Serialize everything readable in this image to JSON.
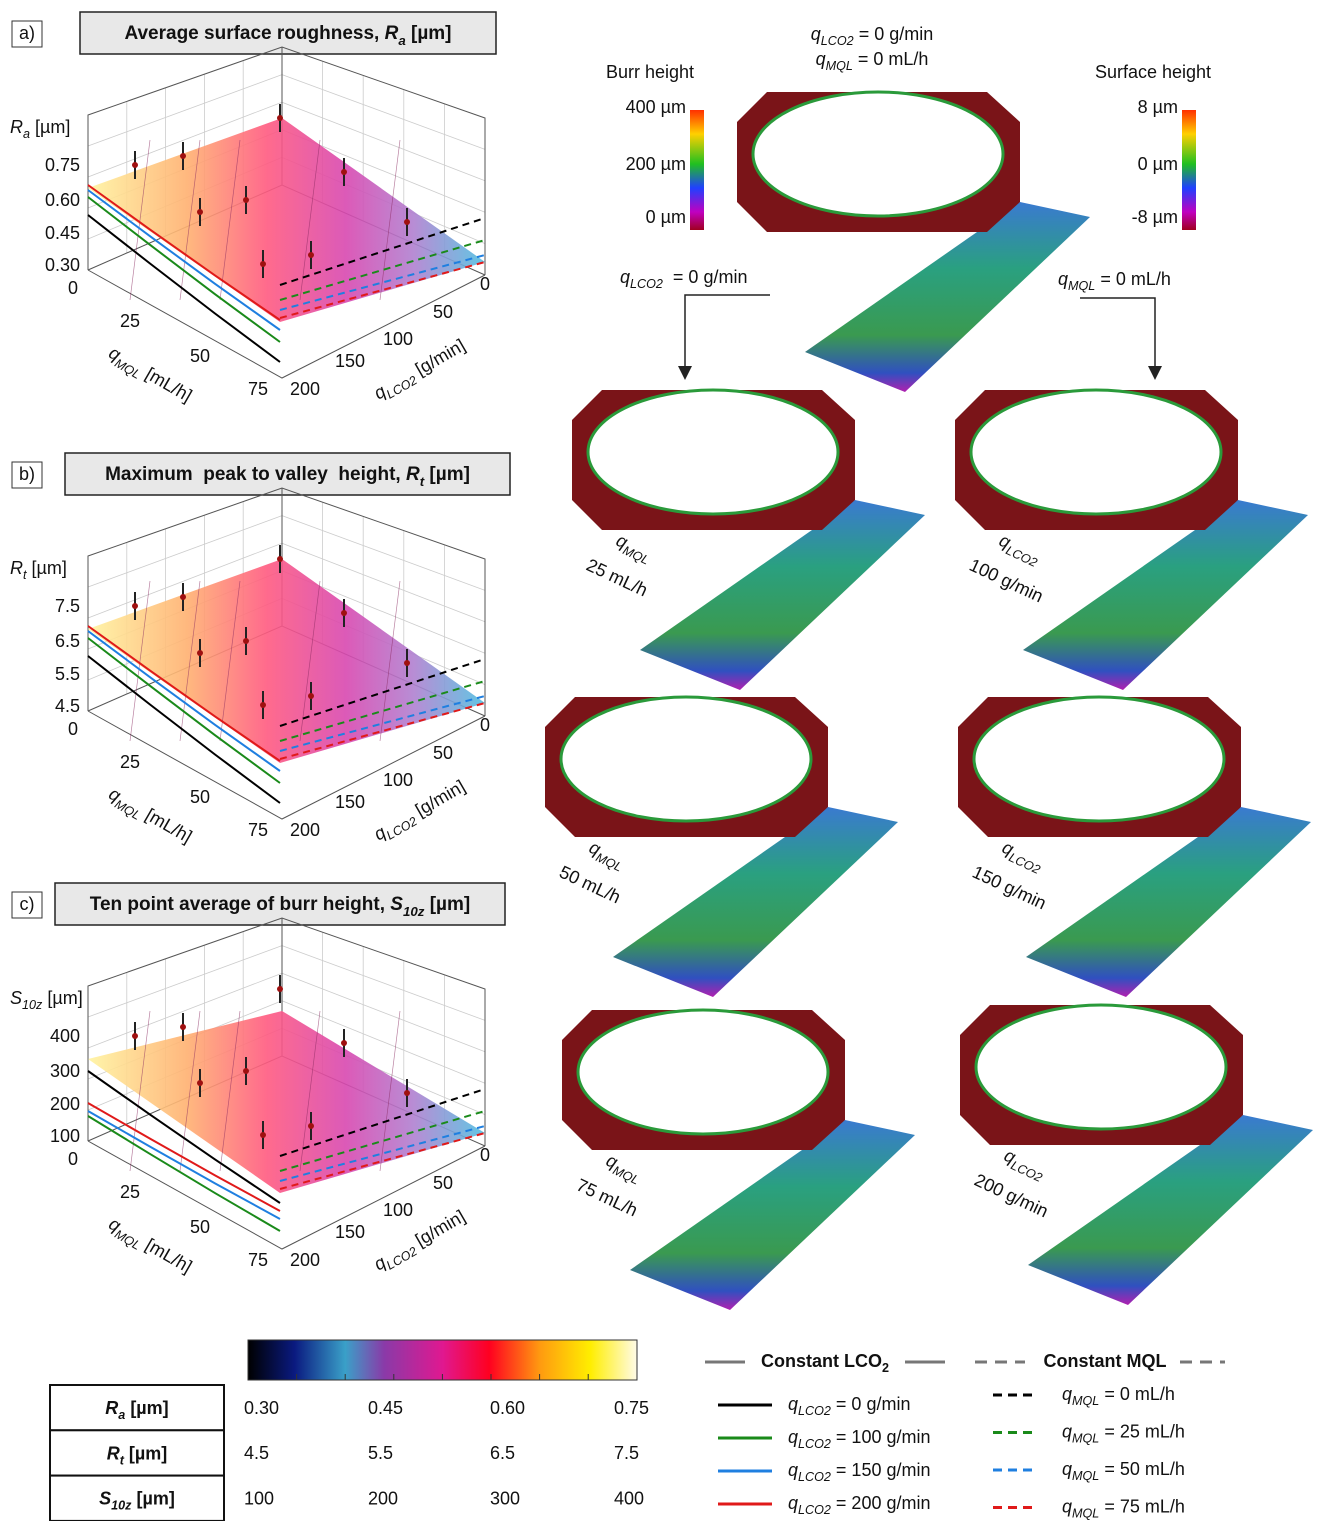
{
  "panels": [
    {
      "label": "a)",
      "title": {
        "pre": "Average surface roughness, ",
        "var": "R",
        "sub": "a",
        "tail": " [µm]"
      },
      "z_label": {
        "var": "R",
        "sub": "a",
        "tail": " [µm]"
      },
      "z_ticks": [
        "0.75",
        "0.60",
        "0.45",
        "0.30",
        "0"
      ],
      "x_label": {
        "var": "q",
        "sub": "MQL",
        "tail": " [mL/h]"
      },
      "x_ticks": [
        "25",
        "50",
        "75"
      ],
      "y_label": {
        "var": "q",
        "sub": "LCO2",
        "tail": " [g/min]"
      },
      "y_ticks": [
        "200",
        "150",
        "100",
        "50",
        "0"
      ]
    },
    {
      "label": "b)",
      "title": {
        "pre": "Maximum  peak to valley  height, ",
        "var": "R",
        "sub": "t",
        "tail": " [µm]"
      },
      "z_label": {
        "var": "R",
        "sub": "t",
        "tail": " [µm]"
      },
      "z_ticks": [
        "7.5",
        "6.5",
        "5.5",
        "4.5",
        "0"
      ],
      "x_label": {
        "var": "q",
        "sub": "MQL",
        "tail": " [mL/h]"
      },
      "x_ticks": [
        "25",
        "50",
        "75"
      ],
      "y_label": {
        "var": "q",
        "sub": "LCO2",
        "tail": " [g/min]"
      },
      "y_ticks": [
        "200",
        "150",
        "100",
        "50",
        "0"
      ]
    },
    {
      "label": "c)",
      "title": {
        "pre": "Ten point average of burr height, ",
        "var": "S",
        "sub": "10z",
        "tail": " [µm]"
      },
      "z_label": {
        "var": "S",
        "sub": "10z",
        "tail": " [µm]"
      },
      "z_ticks": [
        "400",
        "300",
        "200",
        "100",
        "0"
      ],
      "x_label": {
        "var": "q",
        "sub": "MQL",
        "tail": " [mL/h]"
      },
      "x_ticks": [
        "25",
        "50",
        "75"
      ],
      "y_label": {
        "var": "q",
        "sub": "LCO2",
        "tail": " [g/min]"
      },
      "y_ticks": [
        "200",
        "150",
        "100",
        "50",
        "0"
      ]
    }
  ],
  "reference": [
    {
      "var": "q",
      "sub": "LCO2",
      "tail": " = 0 g/min"
    },
    {
      "var": "q",
      "sub": "MQL",
      "tail": " = 0 mL/h"
    }
  ],
  "burr_scale": {
    "title": "Burr height",
    "ticks": [
      "400 µm",
      "200 µm",
      "0 µm"
    ]
  },
  "surface_scale": {
    "title": "Surface height",
    "ticks": [
      "8 µm",
      "0 µm",
      "-8 µm"
    ]
  },
  "arrows": [
    {
      "var": "q",
      "sub": "LCO2",
      "tail": "  = 0 g/min"
    },
    {
      "var": "q",
      "sub": "MQL",
      "tail": " = 0 mL/h"
    }
  ],
  "scans": [
    {
      "var": "q",
      "sub": "MQL",
      "value": "25 mL/h"
    },
    {
      "var": "q",
      "sub": "LCO2",
      "value": "100 g/min"
    },
    {
      "var": "q",
      "sub": "MQL",
      "value": "50 mL/h"
    },
    {
      "var": "q",
      "sub": "LCO2",
      "value": "150 g/min"
    },
    {
      "var": "q",
      "sub": "MQL",
      "value": "75 mL/h"
    },
    {
      "var": "q",
      "sub": "LCO2",
      "value": "200 g/min"
    }
  ],
  "colorbar_table": {
    "rows": [
      {
        "label": {
          "var": "R",
          "sub": "a",
          "tail": " [µm]"
        },
        "values": [
          "0.30",
          "0.45",
          "0.60",
          "0.75"
        ]
      },
      {
        "label": {
          "var": "R",
          "sub": "t",
          "tail": " [µm]"
        },
        "values": [
          "4.5",
          "5.5",
          "6.5",
          "7.5"
        ]
      },
      {
        "label": {
          "var": "S",
          "sub": "10z",
          "tail": " [µm]"
        },
        "values": [
          "100",
          "200",
          "300",
          "400"
        ]
      }
    ]
  },
  "legend": {
    "solid_title": {
      "pre": "Constant LCO",
      "sub": "2"
    },
    "dashed_title": {
      "pre": "Constant MQL"
    },
    "solid": [
      {
        "var": "q",
        "sub": "LCO2",
        "tail": " = 0 g/min",
        "color": "#000000"
      },
      {
        "var": "q",
        "sub": "LCO2",
        "tail": " = 100 g/min",
        "color": "#1a8a1a"
      },
      {
        "var": "q",
        "sub": "LCO2",
        "tail": " = 150 g/min",
        "color": "#1f7fe0"
      },
      {
        "var": "q",
        "sub": "LCO2",
        "tail": " = 200 g/min",
        "color": "#e01a1a"
      }
    ],
    "dashed": [
      {
        "var": "q",
        "sub": "MQL",
        "tail": " = 0 mL/h",
        "color": "#000000"
      },
      {
        "var": "q",
        "sub": "MQL",
        "tail": " = 25 mL/h",
        "color": "#1a8a1a"
      },
      {
        "var": "q",
        "sub": "MQL",
        "tail": " = 50 mL/h",
        "color": "#1f7fe0"
      },
      {
        "var": "q",
        "sub": "MQL",
        "tail": " = 75 mL/h",
        "color": "#e01a1a"
      }
    ]
  }
}
